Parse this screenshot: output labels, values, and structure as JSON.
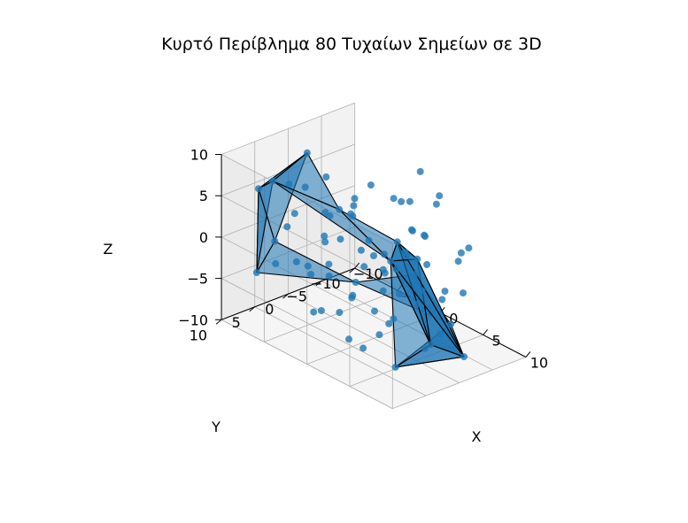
{
  "chart_data": {
    "type": "scatter",
    "title": "Κυρτό Περίβλημα 80 Τυχαίων Σημείων σε 3D",
    "xlabel": "X",
    "ylabel": "Y",
    "zlabel": "Z",
    "xlim": [
      -10,
      10
    ],
    "ylim": [
      -10,
      10
    ],
    "zlim": [
      -10,
      10
    ],
    "x_ticks": [
      "−10",
      "−5",
      "0",
      "5",
      "10"
    ],
    "y_ticks": [
      "−10",
      "−5",
      "0",
      "5",
      "10"
    ],
    "z_ticks": [
      "−10",
      "−5",
      "0",
      "5",
      "10"
    ],
    "grid": true,
    "hull_color": "#1f77b4",
    "point_color": "#1f77b4",
    "edge_color": "#000000",
    "series": [
      {
        "points": [
          [
            9,
            8,
            9
          ],
          [
            9,
            9,
            7
          ],
          [
            3,
            9,
            10
          ],
          [
            -4,
            10,
            10
          ],
          [
            -8,
            7,
            6
          ],
          [
            -9,
            6,
            -5
          ],
          [
            -10,
            2,
            -3
          ],
          [
            -7,
            1,
            9
          ],
          [
            -6,
            -5,
            -8
          ],
          [
            -3,
            -10,
            -7
          ],
          [
            2,
            -9,
            -10
          ],
          [
            9,
            -2,
            -8
          ],
          [
            9,
            3,
            -5
          ],
          [
            9,
            5,
            6
          ],
          [
            0,
            0,
            0
          ],
          [
            -2,
            4,
            5
          ],
          [
            1,
            2,
            3
          ],
          [
            3,
            -2,
            4
          ],
          [
            5,
            3,
            2
          ],
          [
            -4,
            -2,
            2
          ],
          [
            6,
            -3,
            -2
          ],
          [
            4,
            5,
            -3
          ],
          [
            -1,
            -6,
            -2
          ],
          [
            2,
            -4,
            -6
          ],
          [
            -5,
            3,
            -4
          ],
          [
            7,
            1,
            3
          ],
          [
            -3,
            6,
            -1
          ],
          [
            0,
            -3,
            6
          ],
          [
            4,
            7,
            5
          ],
          [
            -6,
            -1,
            -6
          ],
          [
            1,
            8,
            2
          ],
          [
            6,
            -5,
            1
          ],
          [
            -2,
            -8,
            3
          ],
          [
            8,
            0,
            -1
          ],
          [
            -7,
            4,
            1
          ],
          [
            3,
            3,
            -7
          ],
          [
            5,
            -7,
            -4
          ],
          [
            -4,
            0,
            -9
          ],
          [
            2,
            6,
            8
          ],
          [
            -1,
            2,
            -5
          ],
          [
            7,
            6,
            -2
          ],
          [
            -5,
            -6,
            4
          ],
          [
            0,
            9,
            -4
          ],
          [
            6,
            2,
            7
          ],
          [
            -8,
            -3,
            0
          ],
          [
            3,
            -6,
            7
          ],
          [
            -3,
            8,
            6
          ],
          [
            8,
            -4,
            4
          ],
          [
            1,
            -1,
            -8
          ],
          [
            -6,
            5,
            7
          ],
          [
            4,
            1,
            9
          ],
          [
            -2,
            -4,
            -4
          ],
          [
            5,
            8,
            -6
          ],
          [
            -7,
            -4,
            -3
          ],
          [
            2,
            4,
            1
          ],
          [
            7,
            -1,
            -6
          ],
          [
            -1,
            6,
            3
          ],
          [
            0,
            -7,
            8
          ],
          [
            6,
            6,
            3
          ],
          [
            -4,
            2,
            8
          ],
          [
            3,
            0,
            -3
          ],
          [
            -5,
            -8,
            -5
          ],
          [
            8,
            3,
            1
          ],
          [
            1,
            5,
            -8
          ],
          [
            -3,
            -1,
            5
          ],
          [
            5,
            -3,
            8
          ],
          [
            -6,
            7,
            -2
          ],
          [
            4,
            -8,
            0
          ],
          [
            -2,
            9,
            1
          ],
          [
            7,
            4,
            5
          ],
          [
            0,
            3,
            7
          ],
          [
            -8,
            0,
            4
          ],
          [
            2,
            -5,
            2
          ],
          [
            6,
            0,
            -8
          ],
          [
            -1,
            -9,
            -1
          ],
          [
            5,
            5,
            0
          ],
          [
            -5,
            1,
            0
          ],
          [
            3,
            7,
            -1
          ],
          [
            8,
            7,
            -7
          ],
          [
            -3,
            4,
            -7
          ]
        ]
      }
    ],
    "hull_vertex_indices": [
      0,
      1,
      2,
      3,
      4,
      5,
      6,
      7,
      8,
      9,
      10,
      11,
      12,
      13,
      78
    ]
  }
}
